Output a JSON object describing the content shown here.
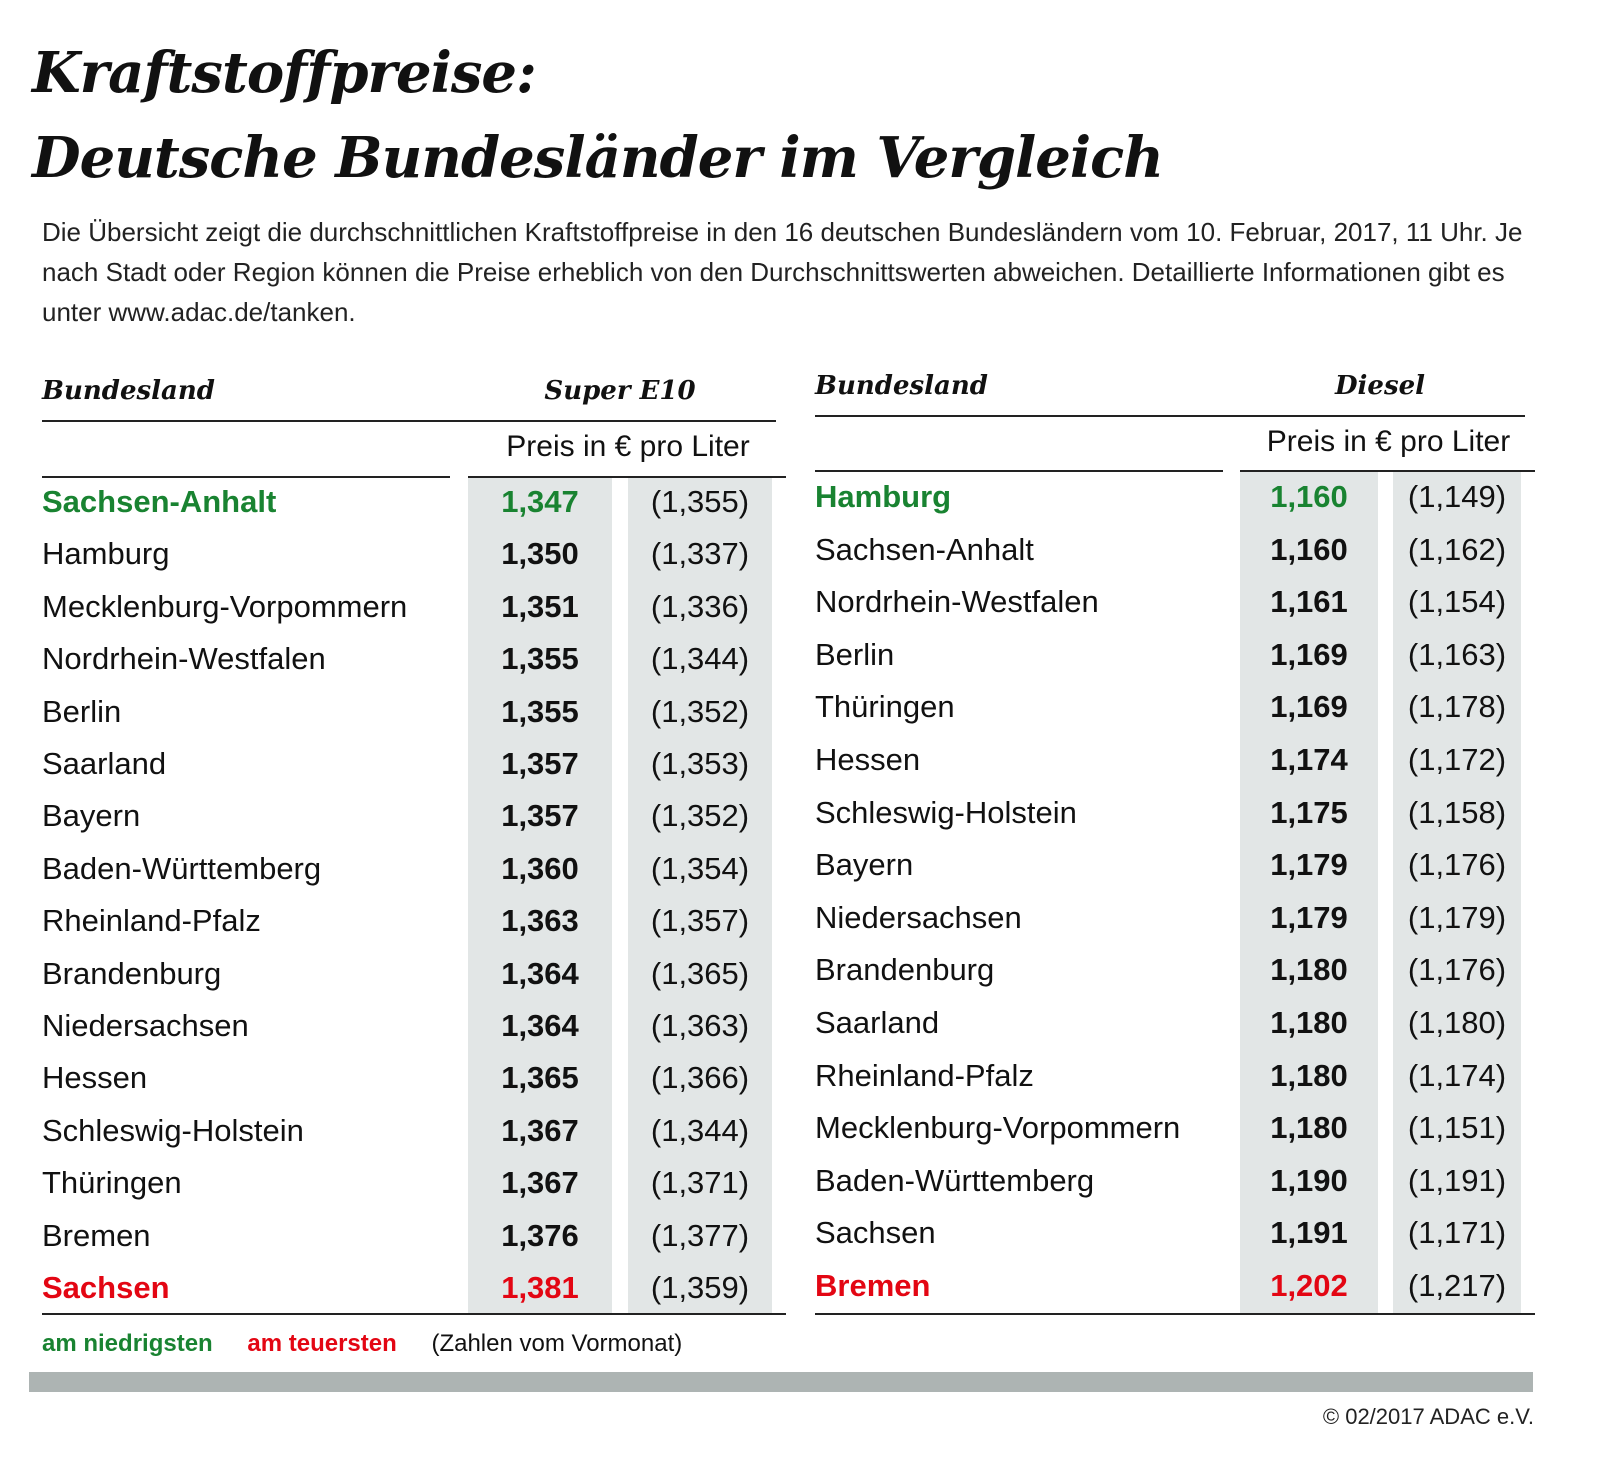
{
  "title_line1": "Kraftstoffpreise:",
  "title_line2": "Deutsche Bundesländer im Vergleich",
  "intro": "Die Übersicht zeigt die durchschnittlichen Kraftstoffpreise in den 16 deutschen Bundesländern vom 10. Februar, 2017, 11 Uhr. Je nach Stadt oder Region können die Preise erheblich von den Durchschnittswerten abweichen. Detaillierte Informationen gibt es unter www.adac.de/tanken.",
  "colors": {
    "lowest": "#198331",
    "highest": "#e30613",
    "shade": "#e2e6e6",
    "bar": "#adb4b3"
  },
  "tables": [
    {
      "col_name": "Bundesland",
      "col_fuel": "Super E10",
      "unit": "Preis in € pro Liter",
      "rows": [
        {
          "name": "Sachsen-Anhalt",
          "price": "1,347",
          "prev": "(1,355)",
          "mark": "lowest"
        },
        {
          "name": "Hamburg",
          "price": "1,350",
          "prev": "(1,337)"
        },
        {
          "name": "Mecklenburg-Vorpommern",
          "price": "1,351",
          "prev": "(1,336)"
        },
        {
          "name": "Nordrhein-Westfalen",
          "price": "1,355",
          "prev": "(1,344)"
        },
        {
          "name": "Berlin",
          "price": "1,355",
          "prev": "(1,352)"
        },
        {
          "name": "Saarland",
          "price": "1,357",
          "prev": "(1,353)"
        },
        {
          "name": "Bayern",
          "price": "1,357",
          "prev": "(1,352)"
        },
        {
          "name": "Baden-Württemberg",
          "price": "1,360",
          "prev": "(1,354)"
        },
        {
          "name": "Rheinland-Pfalz",
          "price": "1,363",
          "prev": "(1,357)"
        },
        {
          "name": "Brandenburg",
          "price": "1,364",
          "prev": "(1,365)"
        },
        {
          "name": "Niedersachsen",
          "price": "1,364",
          "prev": "(1,363)"
        },
        {
          "name": "Hessen",
          "price": "1,365",
          "prev": "(1,366)"
        },
        {
          "name": "Schleswig-Holstein",
          "price": "1,367",
          "prev": "(1,344)"
        },
        {
          "name": "Thüringen",
          "price": "1,367",
          "prev": "(1,371)"
        },
        {
          "name": "Bremen",
          "price": "1,376",
          "prev": "(1,377)"
        },
        {
          "name": "Sachsen",
          "price": "1,381",
          "prev": "(1,359)",
          "mark": "highest"
        }
      ]
    },
    {
      "col_name": "Bundesland",
      "col_fuel": "Diesel",
      "unit": "Preis in € pro Liter",
      "rows": [
        {
          "name": "Hamburg",
          "price": "1,160",
          "prev": "(1,149)",
          "mark": "lowest"
        },
        {
          "name": "Sachsen-Anhalt",
          "price": "1,160",
          "prev": "(1,162)"
        },
        {
          "name": "Nordrhein-Westfalen",
          "price": "1,161",
          "prev": "(1,154)"
        },
        {
          "name": "Berlin",
          "price": "1,169",
          "prev": "(1,163)"
        },
        {
          "name": "Thüringen",
          "price": "1,169",
          "prev": "(1,178)"
        },
        {
          "name": "Hessen",
          "price": "1,174",
          "prev": "(1,172)"
        },
        {
          "name": "Schleswig-Holstein",
          "price": "1,175",
          "prev": "(1,158)"
        },
        {
          "name": "Bayern",
          "price": "1,179",
          "prev": "(1,176)"
        },
        {
          "name": "Niedersachsen",
          "price": "1,179",
          "prev": "(1,179)"
        },
        {
          "name": "Brandenburg",
          "price": "1,180",
          "prev": "(1,176)"
        },
        {
          "name": "Saarland",
          "price": "1,180",
          "prev": "(1,180)"
        },
        {
          "name": "Rheinland-Pfalz",
          "price": "1,180",
          "prev": "(1,174)"
        },
        {
          "name": "Mecklenburg-Vorpommern",
          "price": "1,180",
          "prev": "(1,151)"
        },
        {
          "name": "Baden-Württemberg",
          "price": "1,190",
          "prev": "(1,191)"
        },
        {
          "name": "Sachsen",
          "price": "1,191",
          "prev": "(1,171)"
        },
        {
          "name": "Bremen",
          "price": "1,202",
          "prev": "(1,217)",
          "mark": "highest"
        }
      ]
    }
  ],
  "legend": {
    "lowest": "am niedrigsten",
    "highest": "am teuersten",
    "prev_note": "(Zahlen vom Vormonat)"
  },
  "copyright": "© 02/2017 ADAC e.V."
}
